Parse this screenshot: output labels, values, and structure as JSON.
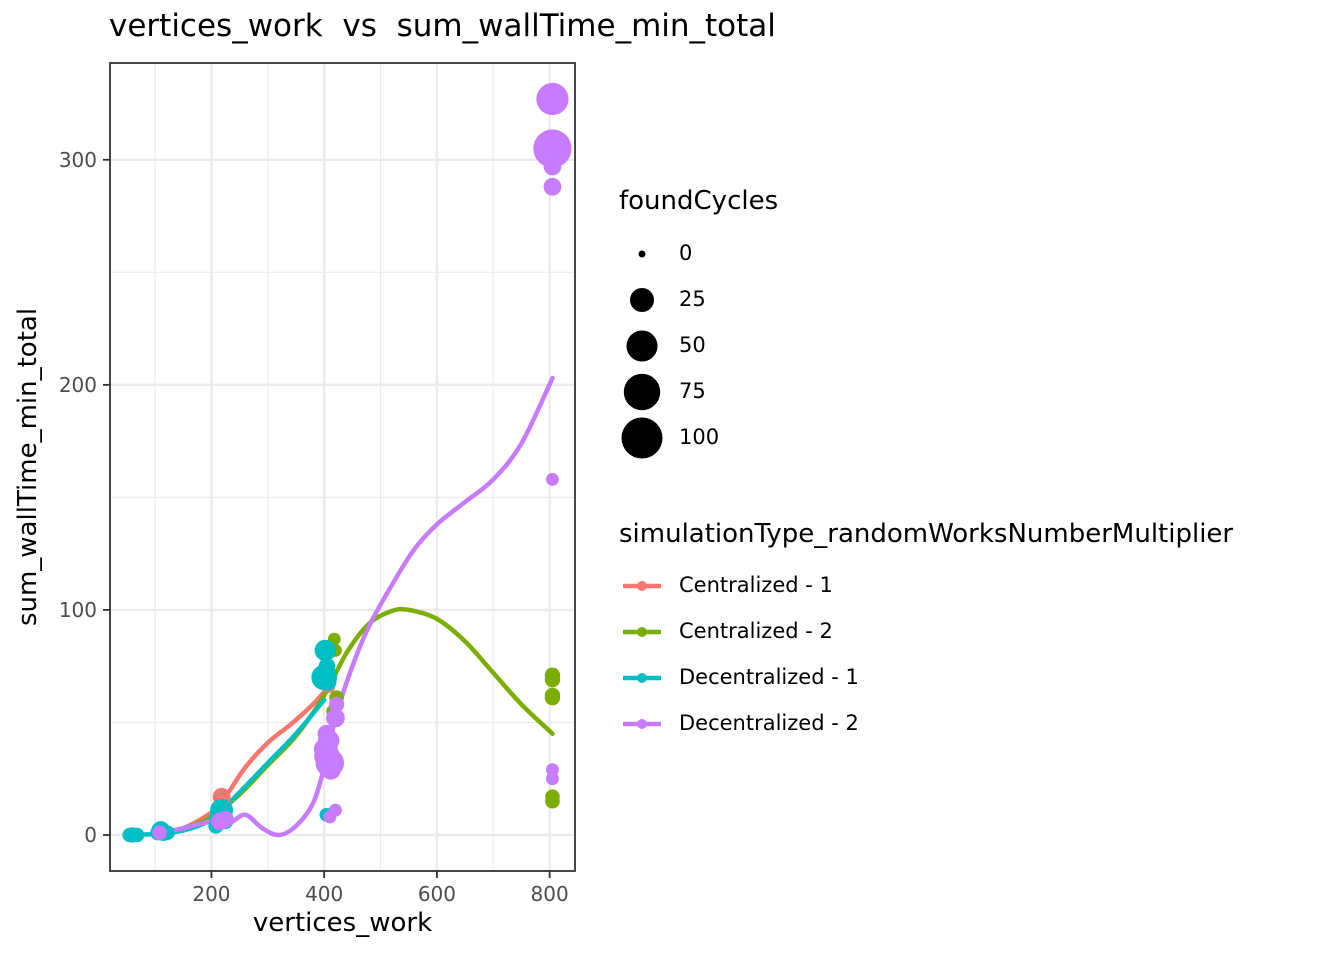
{
  "chart_data": {
    "type": "scatter",
    "title": "vertices_work  vs  sum_wallTime_min_total",
    "xlabel": "vertices_work",
    "ylabel": "sum_wallTime_min_total",
    "xlim": [
      20,
      845
    ],
    "ylim": [
      -16,
      343
    ],
    "x_ticks": [
      200,
      400,
      600,
      800
    ],
    "y_ticks": [
      0,
      100,
      200,
      300
    ],
    "grid": true,
    "legend_position": "right",
    "size_legend": {
      "title": "foundCycles",
      "breaks": [
        0,
        25,
        50,
        75,
        100
      ]
    },
    "color_legend": {
      "title": "simulationType_randomWorksNumberMultiplier"
    },
    "series": [
      {
        "name": "Centralized - 1",
        "color": "#F8766D",
        "points": [
          {
            "x": 218,
            "y": 17,
            "size": 10
          },
          {
            "x": 220,
            "y": 14,
            "size": 8
          },
          {
            "x": 405,
            "y": 81,
            "size": 3
          },
          {
            "x": 408,
            "y": 66,
            "size": 3
          }
        ],
        "smooth": [
          [
            110,
            1
          ],
          [
            150,
            3
          ],
          [
            200,
            10
          ],
          [
            225,
            17
          ],
          [
            260,
            30
          ],
          [
            300,
            41
          ],
          [
            340,
            49
          ],
          [
            380,
            58
          ],
          [
            405,
            65
          ]
        ]
      },
      {
        "name": "Centralized - 2",
        "color": "#7CAE00",
        "points": [
          {
            "x": 418,
            "y": 87,
            "size": 3
          },
          {
            "x": 420,
            "y": 82,
            "size": 3
          },
          {
            "x": 422,
            "y": 61,
            "size": 5
          },
          {
            "x": 415,
            "y": 55,
            "size": 3
          },
          {
            "x": 805,
            "y": 71,
            "size": 6
          },
          {
            "x": 805,
            "y": 69,
            "size": 6
          },
          {
            "x": 805,
            "y": 62,
            "size": 6
          },
          {
            "x": 805,
            "y": 61,
            "size": 6
          },
          {
            "x": 805,
            "y": 17,
            "size": 5
          },
          {
            "x": 805,
            "y": 15,
            "size": 5
          }
        ],
        "smooth": [
          [
            110,
            1
          ],
          [
            150,
            3
          ],
          [
            200,
            8
          ],
          [
            250,
            18
          ],
          [
            300,
            31
          ],
          [
            350,
            44
          ],
          [
            400,
            62
          ],
          [
            440,
            81
          ],
          [
            480,
            94
          ],
          [
            520,
            99.5
          ],
          [
            550,
            100
          ],
          [
            600,
            96
          ],
          [
            650,
            86
          ],
          [
            700,
            72
          ],
          [
            750,
            58
          ],
          [
            805,
            45
          ]
        ]
      },
      {
        "name": "Decentralized - 1",
        "color": "#00BFC4",
        "points": [
          {
            "x": 55,
            "y": 0,
            "size": 5
          },
          {
            "x": 60,
            "y": 0,
            "size": 6
          },
          {
            "x": 68,
            "y": 0,
            "size": 5
          },
          {
            "x": 105,
            "y": 1,
            "size": 6
          },
          {
            "x": 110,
            "y": 2,
            "size": 12
          },
          {
            "x": 115,
            "y": 1,
            "size": 8
          },
          {
            "x": 122,
            "y": 1,
            "size": 5
          },
          {
            "x": 208,
            "y": 4,
            "size": 6
          },
          {
            "x": 212,
            "y": 8,
            "size": 10
          },
          {
            "x": 218,
            "y": 11,
            "size": 22
          },
          {
            "x": 222,
            "y": 9,
            "size": 8
          },
          {
            "x": 225,
            "y": 6,
            "size": 6
          },
          {
            "x": 402,
            "y": 82,
            "size": 18
          },
          {
            "x": 405,
            "y": 75,
            "size": 8
          },
          {
            "x": 404,
            "y": 72,
            "size": 12
          },
          {
            "x": 400,
            "y": 70,
            "size": 30
          },
          {
            "x": 406,
            "y": 68,
            "size": 10
          },
          {
            "x": 408,
            "y": 38,
            "size": 10
          },
          {
            "x": 404,
            "y": 9,
            "size": 4
          }
        ],
        "smooth": [
          [
            55,
            0
          ],
          [
            100,
            0.5
          ],
          [
            150,
            2
          ],
          [
            200,
            7
          ],
          [
            250,
            19
          ],
          [
            300,
            32
          ],
          [
            350,
            45
          ],
          [
            400,
            60
          ]
        ]
      },
      {
        "name": "Decentralized - 2",
        "color": "#C77CFF",
        "points": [
          {
            "x": 805,
            "y": 327,
            "size": 55
          },
          {
            "x": 805,
            "y": 305,
            "size": 85
          },
          {
            "x": 805,
            "y": 297,
            "size": 10
          },
          {
            "x": 805,
            "y": 288,
            "size": 10
          },
          {
            "x": 805,
            "y": 158,
            "size": 3
          },
          {
            "x": 805,
            "y": 29,
            "size": 3
          },
          {
            "x": 805,
            "y": 25,
            "size": 3
          },
          {
            "x": 402,
            "y": 38,
            "size": 22
          },
          {
            "x": 405,
            "y": 35,
            "size": 30
          },
          {
            "x": 408,
            "y": 42,
            "size": 18
          },
          {
            "x": 410,
            "y": 32,
            "size": 40
          },
          {
            "x": 412,
            "y": 29,
            "size": 14
          },
          {
            "x": 404,
            "y": 45,
            "size": 10
          },
          {
            "x": 420,
            "y": 52,
            "size": 12
          },
          {
            "x": 422,
            "y": 58,
            "size": 6
          },
          {
            "x": 420,
            "y": 11,
            "size": 3
          },
          {
            "x": 410,
            "y": 8,
            "size": 3
          },
          {
            "x": 215,
            "y": 6,
            "size": 10
          },
          {
            "x": 225,
            "y": 7,
            "size": 8
          },
          {
            "x": 108,
            "y": 1,
            "size": 5
          }
        ],
        "smooth": [
          [
            110,
            1
          ],
          [
            150,
            3
          ],
          [
            200,
            6
          ],
          [
            230,
            5
          ],
          [
            260,
            9
          ],
          [
            290,
            3
          ],
          [
            320,
            0
          ],
          [
            350,
            4
          ],
          [
            380,
            14
          ],
          [
            400,
            30
          ],
          [
            420,
            52
          ],
          [
            450,
            75
          ],
          [
            480,
            93
          ],
          [
            520,
            111
          ],
          [
            560,
            127
          ],
          [
            600,
            138
          ],
          [
            650,
            148
          ],
          [
            700,
            158
          ],
          [
            750,
            174
          ],
          [
            805,
            203
          ]
        ]
      }
    ]
  }
}
